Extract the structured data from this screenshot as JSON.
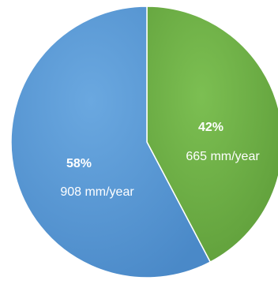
{
  "chart_data": {
    "type": "pie",
    "title": "",
    "slices": [
      {
        "percent_label": "42%",
        "value_label": "665 mm/year",
        "value": 665,
        "percent": 42,
        "color": "#70ad47"
      },
      {
        "percent_label": "58%",
        "value_label": "908 mm/year",
        "value": 908,
        "percent": 58,
        "color": "#5b9bd5"
      }
    ],
    "start": "12 o'clock",
    "direction": "clockwise",
    "legend": "none"
  }
}
